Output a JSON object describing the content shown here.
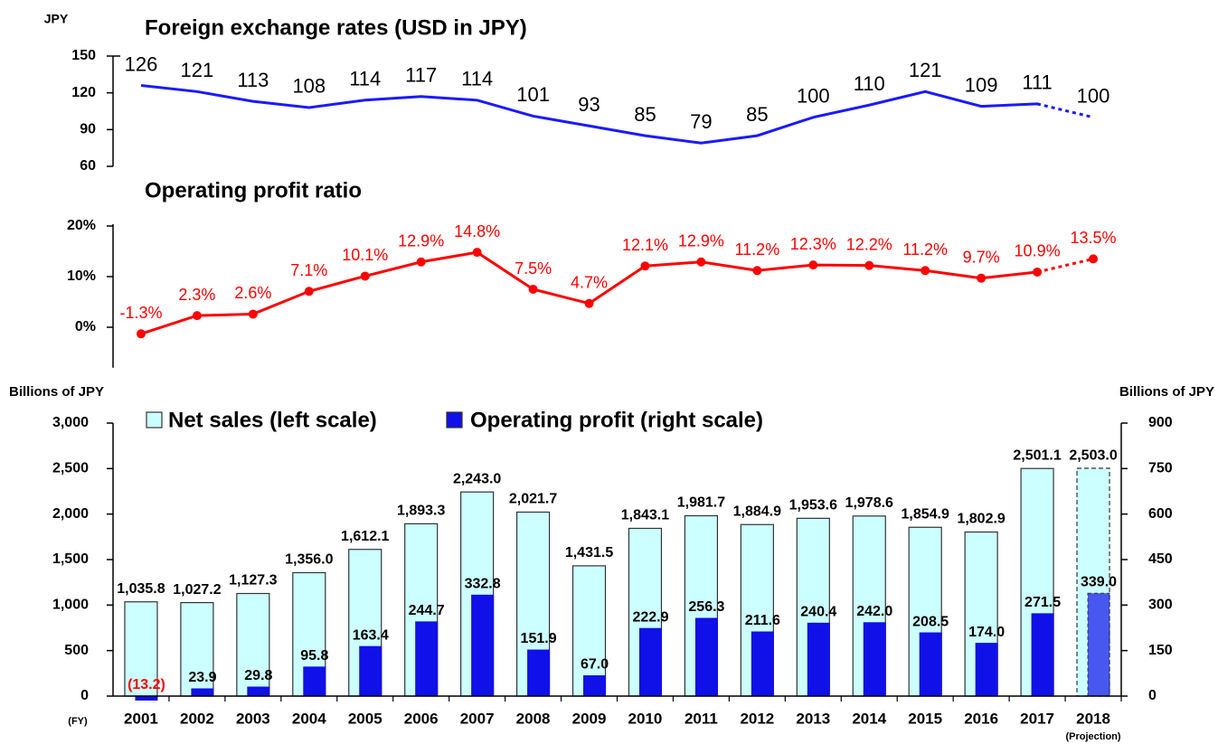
{
  "chart_data": [
    {
      "type": "line",
      "title": "Foreign exchange rates (USD in JPY)",
      "y_label": "JPY",
      "values": [
        126,
        121,
        113,
        108,
        114,
        117,
        114,
        101,
        93,
        85,
        79,
        85,
        100,
        110,
        121,
        109,
        111,
        100
      ],
      "color": "#1a1aff",
      "ylim": [
        60,
        150
      ],
      "yticks": [
        60,
        90,
        120,
        150
      ],
      "dashed_last_segment": true
    },
    {
      "type": "line",
      "title": "Operating profit ratio",
      "values": [
        -1.3,
        2.3,
        2.6,
        7.1,
        10.1,
        12.9,
        14.8,
        7.5,
        4.7,
        12.1,
        12.9,
        11.2,
        12.3,
        12.2,
        11.2,
        9.7,
        10.9,
        13.5
      ],
      "value_labels": [
        "-1.3%",
        "2.3%",
        "2.6%",
        "7.1%",
        "10.1%",
        "12.9%",
        "14.8%",
        "7.5%",
        "4.7%",
        "12.1%",
        "12.9%",
        "11.2%",
        "12.3%",
        "12.2%",
        "11.2%",
        "9.7%",
        "10.9%",
        "13.5%"
      ],
      "color": "#ff0000",
      "markers": true,
      "ylim": [
        -8,
        20
      ],
      "yticks": [
        {
          "value": 0,
          "label": "0%"
        },
        {
          "value": 10,
          "label": "10%"
        },
        {
          "value": 20,
          "label": "20%"
        }
      ],
      "dashed_last_segment": true
    },
    {
      "type": "bar",
      "y_label": "Billions of JPY",
      "y2_label": "Billions of JPY",
      "x_label": "(FY)",
      "last_category_note": "(Projection)",
      "categories": [
        "2001",
        "2002",
        "2003",
        "2004",
        "2005",
        "2006",
        "2007",
        "2008",
        "2009",
        "2010",
        "2011",
        "2012",
        "2013",
        "2014",
        "2015",
        "2016",
        "2017",
        "2018"
      ],
      "ylim": [
        0,
        3000
      ],
      "yticks": [
        0,
        500,
        {
          "value": 1000,
          "label": "1,000"
        },
        {
          "value": 1500,
          "label": "1,500"
        },
        {
          "value": 2000,
          "label": "2,000"
        },
        {
          "value": 2500,
          "label": "2,500"
        },
        {
          "value": 3000,
          "label": "3,000"
        }
      ],
      "y2lim": [
        0,
        900
      ],
      "y2ticks": [
        0,
        150,
        300,
        450,
        600,
        750,
        900
      ],
      "legend": "top-left",
      "projection_last": true,
      "series": [
        {
          "name": "Net sales (left scale)",
          "color": "#ccffff",
          "values": [
            1035.8,
            1027.2,
            1127.3,
            1356.0,
            1612.1,
            1893.3,
            2243.0,
            2021.7,
            1431.5,
            1843.1,
            1981.7,
            1884.9,
            1953.6,
            1978.6,
            1854.9,
            1802.9,
            2501.1,
            2503.0
          ],
          "value_labels": [
            "1,035.8",
            "1,027.2",
            "1,127.3",
            "1,356.0",
            "1,612.1",
            "1,893.3",
            "2,243.0",
            "2,021.7",
            "1,431.5",
            "1,843.1",
            "1,981.7",
            "1,884.9",
            "1,953.6",
            "1,978.6",
            "1,854.9",
            "1,802.9",
            "2,501.1",
            "2,503.0"
          ]
        },
        {
          "name": "Operating profit (right scale)",
          "color": "#1010e8",
          "axis": "y2",
          "values": [
            -13.2,
            23.9,
            29.8,
            95.8,
            163.4,
            244.7,
            332.8,
            151.9,
            67.0,
            222.9,
            256.3,
            211.6,
            240.4,
            242.0,
            208.5,
            174.0,
            271.5,
            339.0
          ],
          "value_labels": [
            "(13.2)",
            "23.9",
            "29.8",
            "95.8",
            "163.4",
            "244.7",
            "332.8",
            "151.9",
            "67.0",
            "222.9",
            "256.3",
            "211.6",
            "240.4",
            "242.0",
            "208.5",
            "174.0",
            "271.5",
            "339.0"
          ]
        }
      ]
    }
  ]
}
